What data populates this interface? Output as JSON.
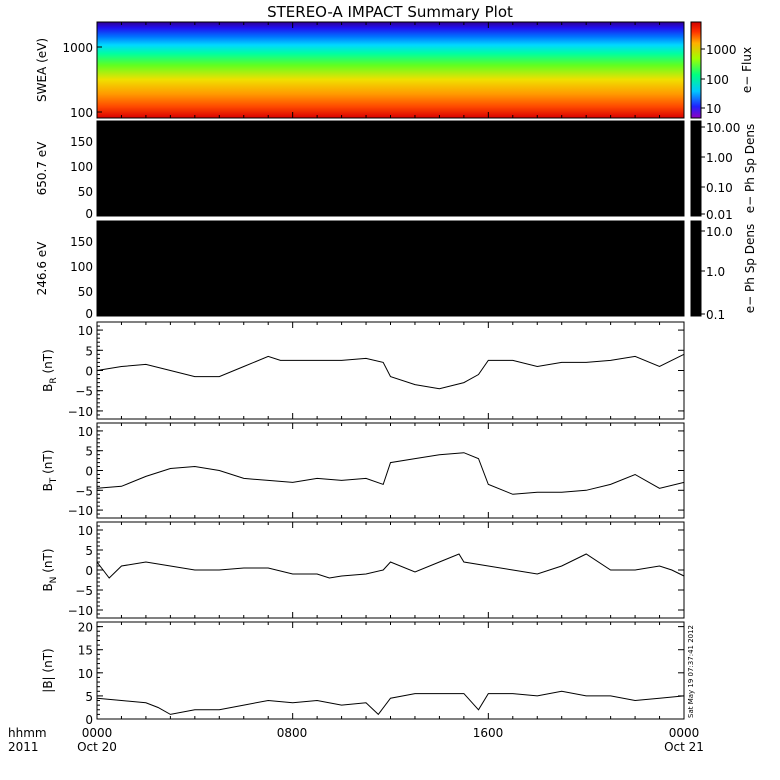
{
  "title": "STEREO-A IMPACT Summary Plot",
  "stamp": "Sat May 19 07:37:41 2012",
  "time_axis": {
    "row1": [
      "hhmm",
      "0000",
      "0800",
      "1600",
      "0000"
    ],
    "row2": [
      "2011",
      "Oct 20",
      "Oct 21"
    ]
  },
  "chart_data": [
    {
      "type": "heatmap",
      "ylabel": "SWEA (eV)",
      "yscale": "log",
      "ylim": [
        100,
        2000
      ],
      "yticks": [
        "1000",
        "100"
      ],
      "colorbar": {
        "label": "e− Flux",
        "ticks": [
          "1000",
          "100",
          "10"
        ],
        "scale": "log",
        "range": [
          5,
          6000
        ]
      }
    },
    {
      "type": "heatmap",
      "ylabel": "650.7 eV",
      "ylim": [
        0,
        180
      ],
      "yticks": [
        "150",
        "100",
        "50",
        "0"
      ],
      "colorbar": {
        "label": "e− Ph Sp Dens",
        "ticks": [
          "10.00",
          "1.00",
          "0.10",
          "0.01"
        ],
        "scale": "log"
      }
    },
    {
      "type": "heatmap",
      "ylabel": "246.6 eV",
      "ylim": [
        0,
        180
      ],
      "yticks": [
        "150",
        "100",
        "50",
        "0"
      ],
      "colorbar": {
        "label": "e− Ph Sp Dens",
        "ticks": [
          "10.0",
          "1.0",
          "0.1"
        ],
        "scale": "log"
      }
    },
    {
      "type": "line",
      "ylabel_main": "B",
      "ylabel_sub": "R",
      "ylabel_unit": "(nT)",
      "ylim": [
        -12,
        12
      ],
      "yticks": [
        "10",
        "5",
        "0",
        "−5",
        "−10"
      ],
      "x": [
        0,
        1,
        2,
        3,
        4,
        5,
        6,
        7,
        7.5,
        8,
        9,
        10,
        11,
        11.7,
        12,
        13,
        14,
        15,
        15.6,
        16,
        17,
        18,
        19,
        20,
        21,
        22,
        23,
        24
      ],
      "values": [
        0,
        1,
        1.5,
        0,
        -1.5,
        -1.5,
        1,
        3.5,
        2.5,
        2.5,
        2.5,
        2.5,
        3,
        2,
        -1.5,
        -3.5,
        -4.5,
        -3,
        -1,
        2.5,
        2.5,
        1,
        2,
        2,
        2.5,
        3.5,
        1,
        4
      ]
    },
    {
      "type": "line",
      "ylabel_main": "B",
      "ylabel_sub": "T",
      "ylabel_unit": "(nT)",
      "ylim": [
        -12,
        12
      ],
      "yticks": [
        "10",
        "5",
        "0",
        "−5",
        "−10"
      ],
      "x": [
        0,
        1,
        2,
        3,
        4,
        5,
        6,
        7,
        8,
        9,
        10,
        11,
        11.7,
        12,
        13,
        14,
        15,
        15.6,
        16,
        17,
        18,
        19,
        20,
        21,
        22,
        23,
        24
      ],
      "values": [
        -4.5,
        -4,
        -1.5,
        0.5,
        1,
        0,
        -2,
        -2.5,
        -3,
        -2,
        -2.5,
        -2,
        -3.5,
        2,
        3,
        4,
        4.5,
        3,
        -3.5,
        -6,
        -5.5,
        -5.5,
        -5,
        -3.5,
        -1,
        -4.5,
        -3
      ]
    },
    {
      "type": "line",
      "ylabel_main": "B",
      "ylabel_sub": "N",
      "ylabel_unit": "(nT)",
      "ylim": [
        -12,
        12
      ],
      "yticks": [
        "10",
        "5",
        "0",
        "−5",
        "−10"
      ],
      "x": [
        0,
        0.5,
        1,
        2,
        3,
        4,
        5,
        6,
        7,
        8,
        9,
        9.5,
        10,
        11,
        11.7,
        12,
        13,
        14,
        14.8,
        15,
        16,
        17,
        18,
        19,
        20,
        21,
        22,
        23,
        23.5,
        24
      ],
      "values": [
        2,
        -2,
        1,
        2,
        1,
        0,
        0,
        0.5,
        0.5,
        -1,
        -1,
        -2,
        -1.5,
        -1,
        0,
        2,
        -0.5,
        2,
        4,
        2,
        1,
        0,
        -1,
        1,
        4,
        0,
        0,
        1,
        0,
        -1.5
      ]
    },
    {
      "type": "line",
      "ylabel_main": "|B|",
      "ylabel_unit": "(nT)",
      "ylim": [
        0,
        21
      ],
      "yticks": [
        "20",
        "15",
        "10",
        "5",
        "0"
      ],
      "x": [
        0,
        1,
        2,
        2.5,
        3,
        4,
        5,
        6,
        7,
        8,
        9,
        10,
        11,
        11.5,
        12,
        13,
        14,
        15,
        15.6,
        16,
        17,
        18,
        19,
        20,
        21,
        22,
        23,
        24
      ],
      "values": [
        4.5,
        4,
        3.5,
        2.5,
        1,
        2,
        2,
        3,
        4,
        3.5,
        4,
        3,
        3.5,
        1,
        4.5,
        5.5,
        5.5,
        5.5,
        2,
        5.5,
        5.5,
        5,
        6,
        5,
        5,
        4,
        4.5,
        5
      ]
    }
  ]
}
